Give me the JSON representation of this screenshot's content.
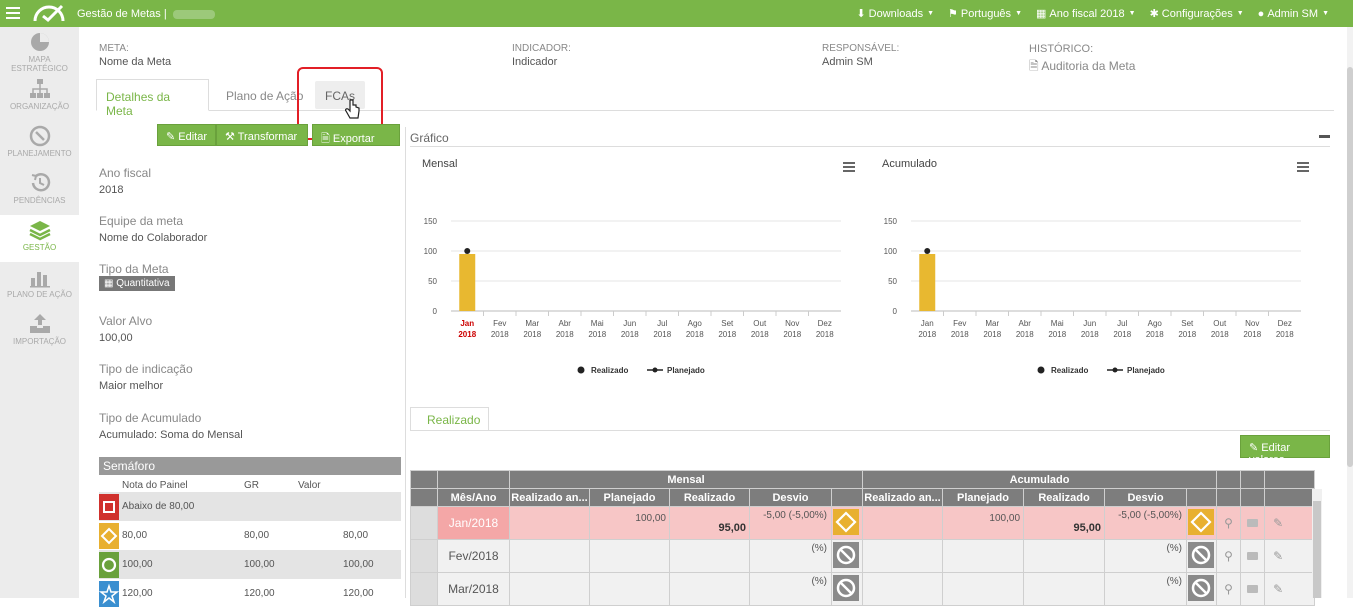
{
  "app": {
    "title": "Gestão de Metas |"
  },
  "topnav": [
    {
      "icon": "download-icon",
      "glyph": "⬇",
      "label": "Downloads"
    },
    {
      "icon": "flag-icon",
      "glyph": "⚑",
      "label": "Português"
    },
    {
      "icon": "calendar-icon",
      "glyph": "▦",
      "label": "Ano fiscal 2018"
    },
    {
      "icon": "gear-icon",
      "glyph": "✱",
      "label": "Configurações"
    },
    {
      "icon": "user-icon",
      "glyph": "●",
      "label": "Admin SM"
    }
  ],
  "sidebar": [
    {
      "label": "MAPA ESTRATÉGICO",
      "icon": "pie-chart-icon"
    },
    {
      "label": "ORGANIZAÇÃO",
      "icon": "org-chart-icon"
    },
    {
      "label": "PLANEJAMENTO",
      "icon": "compass-icon"
    },
    {
      "label": "PENDÊNCIAS",
      "icon": "history-icon"
    },
    {
      "label": "GESTÃO",
      "icon": "stack-icon"
    },
    {
      "label": "PLANO DE AÇÃO",
      "icon": "bar-chart-icon"
    },
    {
      "label": "IMPORTAÇÃO",
      "icon": "upload-icon"
    }
  ],
  "header": {
    "meta_label": "META:",
    "meta_value": "Nome da Meta",
    "indicador_label": "INDICADOR:",
    "indicador_value": "Indicador",
    "responsavel_label": "RESPONSÁVEL:",
    "responsavel_value": "Admin SM",
    "historico_label": "HISTÓRICO:",
    "historico_value": "Auditoria da Meta"
  },
  "tabs": [
    "Detalhes da Meta",
    "Plano de Ação",
    "FCAs"
  ],
  "buttons": {
    "edit": "Editar",
    "transform": "Transformar",
    "export": "Exportar PDF",
    "edit_values": "Editar valores"
  },
  "fields": [
    {
      "label": "Ano fiscal",
      "value": "2018"
    },
    {
      "label": "Equipe da meta",
      "value": "Nome do Colaborador"
    },
    {
      "label": "Tipo da Meta",
      "value": "Quantitativa"
    },
    {
      "label": "Valor Alvo",
      "value": "100,00"
    },
    {
      "label": "Tipo de indicação",
      "value": "Maior melhor"
    },
    {
      "label": "Tipo de Acumulado",
      "value": "Acumulado: Soma do Mensal"
    }
  ],
  "semaforo": {
    "title": "Semáforo",
    "headers": [
      "Nota do Painel",
      "GR",
      "Valor"
    ],
    "rows": [
      {
        "label": "Abaixo de 80,00",
        "color": "#d0312d",
        "shape": "square"
      },
      {
        "nota": "80,00",
        "gr": "80,00",
        "valor": "80,00",
        "color": "#e8b030",
        "shape": "diamond"
      },
      {
        "nota": "100,00",
        "gr": "100,00",
        "valor": "100,00",
        "color": "#6aa13c",
        "shape": "circle"
      },
      {
        "nota": "120,00",
        "gr": "120,00",
        "valor": "120,00",
        "color": "#3a8fd0",
        "shape": "star"
      }
    ]
  },
  "grafico": {
    "title": "Gráfico",
    "legend": [
      "Realizado",
      "Planejado"
    ]
  },
  "chart_data": [
    {
      "type": "bar",
      "title": "Mensal",
      "categories": [
        "Jan 2018",
        "Fev 2018",
        "Mar 2018",
        "Abr 2018",
        "Mai 2018",
        "Jun 2018",
        "Jul 2018",
        "Ago 2018",
        "Set 2018",
        "Out 2018",
        "Nov 2018",
        "Dez 2018"
      ],
      "cat_top": [
        "Jan",
        "Fev",
        "Mar",
        "Abr",
        "Mai",
        "Jun",
        "Jul",
        "Ago",
        "Set",
        "Out",
        "Nov",
        "Dez"
      ],
      "cat_bottom": [
        "2018",
        "2018",
        "2018",
        "2018",
        "2018",
        "2018",
        "2018",
        "2018",
        "2018",
        "2018",
        "2018",
        "2018"
      ],
      "series": [
        {
          "name": "Realizado",
          "type": "bar",
          "values": [
            95,
            null,
            null,
            null,
            null,
            null,
            null,
            null,
            null,
            null,
            null,
            null
          ],
          "color": "#e8b830"
        },
        {
          "name": "Planejado",
          "type": "line",
          "values": [
            100,
            null,
            null,
            null,
            null,
            null,
            null,
            null,
            null,
            null,
            null,
            null
          ],
          "color": "#222222"
        }
      ],
      "yticks": [
        0,
        50,
        100,
        150
      ],
      "ylim": [
        0,
        150
      ],
      "highlight_first": true
    },
    {
      "type": "bar",
      "title": "Acumulado",
      "categories": [
        "Jan 2018",
        "Fev 2018",
        "Mar 2018",
        "Abr 2018",
        "Mai 2018",
        "Jun 2018",
        "Jul 2018",
        "Ago 2018",
        "Set 2018",
        "Out 2018",
        "Nov 2018",
        "Dez 2018"
      ],
      "cat_top": [
        "Jan",
        "Fev",
        "Mar",
        "Abr",
        "Mai",
        "Jun",
        "Jul",
        "Ago",
        "Set",
        "Out",
        "Nov",
        "Dez"
      ],
      "cat_bottom": [
        "2018",
        "2018",
        "2018",
        "2018",
        "2018",
        "2018",
        "2018",
        "2018",
        "2018",
        "2018",
        "2018",
        "2018"
      ],
      "series": [
        {
          "name": "Realizado",
          "type": "bar",
          "values": [
            95,
            null,
            null,
            null,
            null,
            null,
            null,
            null,
            null,
            null,
            null,
            null
          ],
          "color": "#e8b830"
        },
        {
          "name": "Planejado",
          "type": "line",
          "values": [
            100,
            null,
            null,
            null,
            null,
            null,
            null,
            null,
            null,
            null,
            null,
            null
          ],
          "color": "#222222"
        }
      ],
      "yticks": [
        0,
        50,
        100,
        150
      ],
      "ylim": [
        0,
        150
      ],
      "highlight_first": false
    }
  ],
  "realizado_tab": "Realizado",
  "table": {
    "group_headers": [
      "Mensal",
      "Acumulado"
    ],
    "headers": [
      "Mês/Ano",
      "Realizado an...",
      "Planejado",
      "Realizado",
      "Desvio",
      "Realizado an...",
      "Planejado",
      "Realizado",
      "Desvio"
    ],
    "rows": [
      {
        "mes": "Jan/2018",
        "m_ra": "",
        "m_plan": "100,00",
        "m_real": "95,00",
        "m_dev": "-5,00 (-5,00%)",
        "a_ra": "",
        "a_plan": "100,00",
        "a_real": "95,00",
        "a_dev": "-5,00 (-5,00%)",
        "status": "diamond"
      },
      {
        "mes": "Fev/2018",
        "m_ra": "",
        "m_plan": "",
        "m_real": "",
        "m_dev": "(%)",
        "a_ra": "",
        "a_plan": "",
        "a_real": "",
        "a_dev": "(%)",
        "status": "none"
      },
      {
        "mes": "Mar/2018",
        "m_ra": "",
        "m_plan": "",
        "m_real": "",
        "m_dev": "(%)",
        "a_ra": "",
        "a_plan": "",
        "a_real": "",
        "a_dev": "(%)",
        "status": "none"
      }
    ]
  }
}
